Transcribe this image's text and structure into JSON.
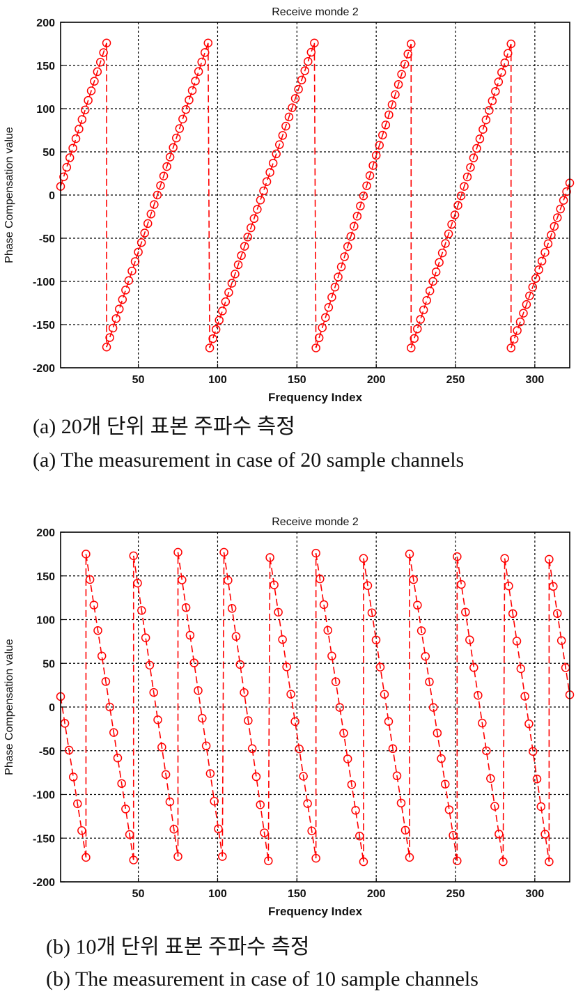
{
  "figures": [
    {
      "id": "a",
      "caption_ko": "(a) 20개 단위 표본 주파수 측정",
      "caption_en": "(a) The measurement in case of 20 sample channels"
    },
    {
      "id": "b",
      "caption_ko": "(b) 10개 단위 표본 주파수 측정",
      "caption_en": "(b) The measurement in case of 10 sample channels"
    }
  ],
  "colors": {
    "series": "#ff0000",
    "grid": "#000000",
    "axes": "#000000"
  },
  "chart_data": [
    {
      "type": "line",
      "title": "Receive monde 2",
      "xlabel": "Frequency Index",
      "ylabel": "Phase Compensation value",
      "xlim": [
        1,
        322
      ],
      "ylim": [
        -200,
        200
      ],
      "xticks": [
        50,
        100,
        150,
        200,
        250,
        300
      ],
      "yticks": [
        -200,
        -150,
        -100,
        -50,
        0,
        50,
        100,
        150,
        200
      ],
      "grid": true,
      "line_style": "dashed",
      "marker": "circle",
      "description": "sawtooth rising ramps wrapping from ~+177 to ~-177",
      "segments": [
        {
          "x": [
            1,
            30
          ],
          "y": [
            10,
            176
          ]
        },
        {
          "x": [
            30,
            94
          ],
          "y": [
            -176,
            176
          ]
        },
        {
          "x": [
            95,
            161
          ],
          "y": [
            -177,
            176
          ]
        },
        {
          "x": [
            162,
            222
          ],
          "y": [
            -177,
            175
          ]
        },
        {
          "x": [
            222,
            285
          ],
          "y": [
            -177,
            175
          ]
        },
        {
          "x": [
            285,
            322
          ],
          "y": [
            -177,
            14
          ]
        }
      ],
      "point_spacing": 2
    },
    {
      "type": "line",
      "title": "Receive monde 2",
      "xlabel": "Frequency Index",
      "ylabel": "Phase Compensation value",
      "xlim": [
        1,
        322
      ],
      "ylim": [
        -200,
        200
      ],
      "xticks": [
        50,
        100,
        150,
        200,
        250,
        300
      ],
      "yticks": [
        -200,
        -150,
        -100,
        -50,
        0,
        50,
        100,
        150,
        200
      ],
      "grid": true,
      "line_style": "dashed",
      "marker": "circle",
      "description": "sawtooth falling ramps wrapping from ~-177 to ~+177",
      "segments": [
        {
          "x": [
            1,
            17
          ],
          "y": [
            12,
            -172
          ]
        },
        {
          "x": [
            17,
            47
          ],
          "y": [
            175,
            -175
          ]
        },
        {
          "x": [
            47,
            75
          ],
          "y": [
            173,
            -171
          ]
        },
        {
          "x": [
            75,
            103
          ],
          "y": [
            177,
            -171
          ]
        },
        {
          "x": [
            104,
            132
          ],
          "y": [
            177,
            -176
          ]
        },
        {
          "x": [
            133,
            162
          ],
          "y": [
            171,
            -173
          ]
        },
        {
          "x": [
            162,
            192
          ],
          "y": [
            176,
            -177
          ]
        },
        {
          "x": [
            192,
            221
          ],
          "y": [
            170,
            -172
          ]
        },
        {
          "x": [
            221,
            251
          ],
          "y": [
            175,
            -176
          ]
        },
        {
          "x": [
            251,
            280
          ],
          "y": [
            172,
            -177
          ]
        },
        {
          "x": [
            281,
            309
          ],
          "y": [
            170,
            -177
          ]
        },
        {
          "x": [
            309,
            322
          ],
          "y": [
            169,
            14
          ]
        }
      ],
      "point_spacing": 2.6
    }
  ]
}
